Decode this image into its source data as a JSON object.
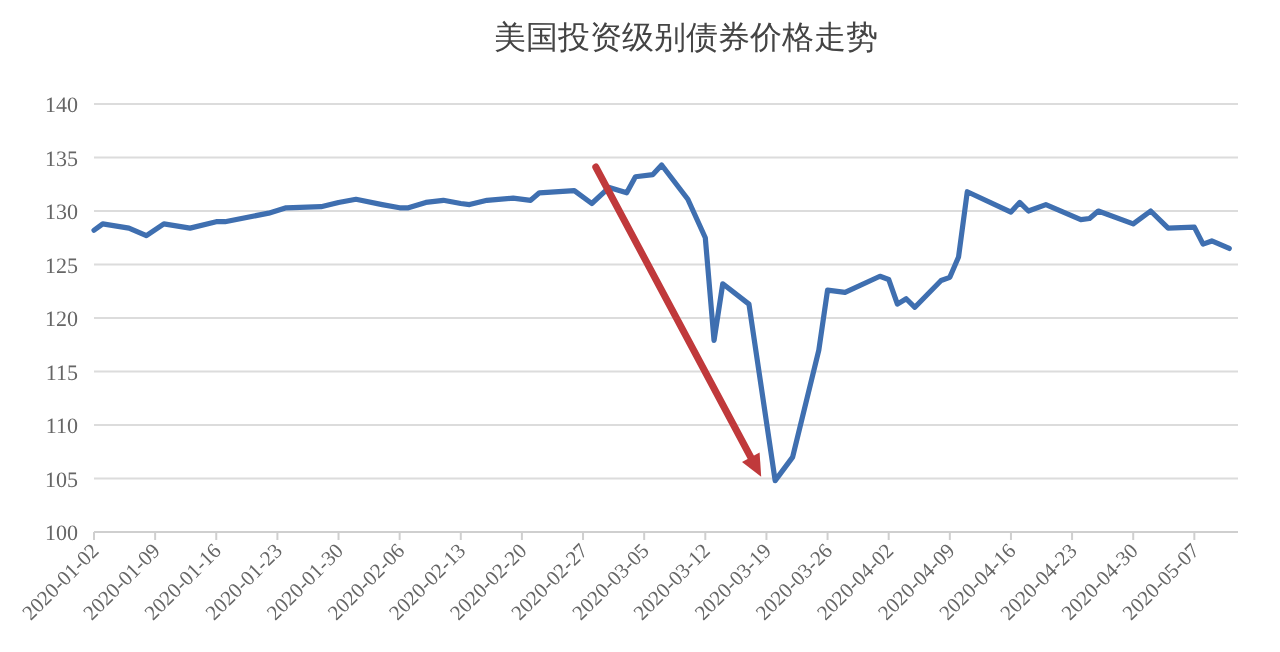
{
  "chart_data": {
    "type": "line",
    "title": "美国投资级别债券价格走势",
    "x": [
      "2020-01-02",
      "2020-01-03",
      "2020-01-06",
      "2020-01-08",
      "2020-01-10",
      "2020-01-13",
      "2020-01-16",
      "2020-01-17",
      "2020-01-22",
      "2020-01-24",
      "2020-01-28",
      "2020-01-30",
      "2020-02-01",
      "2020-02-04",
      "2020-02-06",
      "2020-02-07",
      "2020-02-09",
      "2020-02-11",
      "2020-02-13",
      "2020-02-14",
      "2020-02-16",
      "2020-02-19",
      "2020-02-21",
      "2020-02-22",
      "2020-02-26",
      "2020-02-28",
      "2020-03-01",
      "2020-03-03",
      "2020-03-04",
      "2020-03-06",
      "2020-03-07",
      "2020-03-10",
      "2020-03-12",
      "2020-03-13",
      "2020-03-14",
      "2020-03-17",
      "2020-03-20",
      "2020-03-22",
      "2020-03-25",
      "2020-03-26",
      "2020-03-28",
      "2020-04-01",
      "2020-04-02",
      "2020-04-03",
      "2020-04-04",
      "2020-04-05",
      "2020-04-08",
      "2020-04-09",
      "2020-04-10",
      "2020-04-11",
      "2020-04-16",
      "2020-04-17",
      "2020-04-18",
      "2020-04-20",
      "2020-04-24",
      "2020-04-25",
      "2020-04-26",
      "2020-04-30",
      "2020-05-02",
      "2020-05-04",
      "2020-05-07",
      "2020-05-08",
      "2020-05-09",
      "2020-05-11"
    ],
    "series": [
      {
        "color": "#3f6fb0",
        "values": [
          128.2,
          128.8,
          128.4,
          127.7,
          128.8,
          128.4,
          129.0,
          129.0,
          129.8,
          130.3,
          130.4,
          130.8,
          131.1,
          130.6,
          130.3,
          130.3,
          130.8,
          131.0,
          130.7,
          130.6,
          131.0,
          131.2,
          131.0,
          131.7,
          131.9,
          130.7,
          132.2,
          131.7,
          133.2,
          133.4,
          134.3,
          131.1,
          127.5,
          117.9,
          123.2,
          121.3,
          104.8,
          107.0,
          117.0,
          122.6,
          122.4,
          123.9,
          123.6,
          121.3,
          121.8,
          121.0,
          123.5,
          123.8,
          125.7,
          131.8,
          129.9,
          130.8,
          130.0,
          130.6,
          129.2,
          129.3,
          130.0,
          128.8,
          130.0,
          128.4,
          128.5,
          126.9,
          127.2,
          126.5
        ]
      }
    ],
    "xlim": [
      "2020-01-02",
      "2020-05-12"
    ],
    "xticks": [
      "2020-01-02",
      "2020-01-09",
      "2020-01-16",
      "2020-01-23",
      "2020-01-30",
      "2020-02-06",
      "2020-02-13",
      "2020-02-20",
      "2020-02-27",
      "2020-03-05",
      "2020-03-12",
      "2020-03-19",
      "2020-03-26",
      "2020-04-02",
      "2020-04-09",
      "2020-04-16",
      "2020-04-23",
      "2020-04-30",
      "2020-05-07"
    ],
    "ylim": [
      100,
      140
    ],
    "yticks": [
      100,
      105,
      110,
      115,
      120,
      125,
      130,
      135,
      140
    ],
    "grid": "y"
  }
}
